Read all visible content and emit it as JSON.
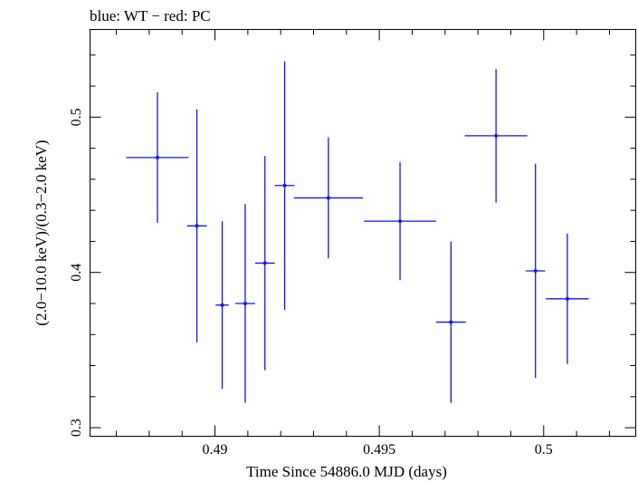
{
  "chart_data": {
    "type": "scatter",
    "title": "blue: WT − red: PC",
    "xlabel": "Time Since 54886.0 MJD (days)",
    "ylabel": "(2.0−10.0 keV)/(0.3−2.0 keV)",
    "xlim": [
      0.4862,
      0.5028
    ],
    "ylim": [
      0.2945,
      0.5565
    ],
    "x_ticks": [
      {
        "value": 0.49,
        "label": "0.49"
      },
      {
        "value": 0.495,
        "label": "0.495"
      },
      {
        "value": 0.5,
        "label": "0.5"
      }
    ],
    "y_ticks": [
      {
        "value": 0.3,
        "label": "0.3"
      },
      {
        "value": 0.4,
        "label": "0.4"
      },
      {
        "value": 0.5,
        "label": "0.5"
      }
    ],
    "grid": false,
    "series": [
      {
        "color": "#1515e6",
        "points": [
          {
            "x": 0.48825,
            "xerr": 0.00095,
            "y": 0.474,
            "yerr": 0.042
          },
          {
            "x": 0.48945,
            "xerr": 0.0003,
            "y": 0.43,
            "yerr": 0.075
          },
          {
            "x": 0.49022,
            "xerr": 0.0002,
            "y": 0.379,
            "yerr": 0.054
          },
          {
            "x": 0.49092,
            "xerr": 0.0003,
            "y": 0.38,
            "yerr": 0.064
          },
          {
            "x": 0.49152,
            "xerr": 0.0003,
            "y": 0.406,
            "yerr": 0.069
          },
          {
            "x": 0.49212,
            "xerr": 0.0003,
            "y": 0.456,
            "yerr": 0.08
          },
          {
            "x": 0.49345,
            "xerr": 0.00105,
            "y": 0.448,
            "yerr": 0.039
          },
          {
            "x": 0.49563,
            "xerr": 0.0011,
            "y": 0.433,
            "yerr": 0.038
          },
          {
            "x": 0.49718,
            "xerr": 0.00045,
            "y": 0.368,
            "yerr": 0.052
          },
          {
            "x": 0.49855,
            "xerr": 0.00095,
            "y": 0.488,
            "yerr": 0.043
          },
          {
            "x": 0.49975,
            "xerr": 0.0003,
            "y": 0.401,
            "yerr": 0.069
          },
          {
            "x": 0.50072,
            "xerr": 0.00065,
            "y": 0.383,
            "yerr": 0.042
          }
        ]
      }
    ]
  }
}
